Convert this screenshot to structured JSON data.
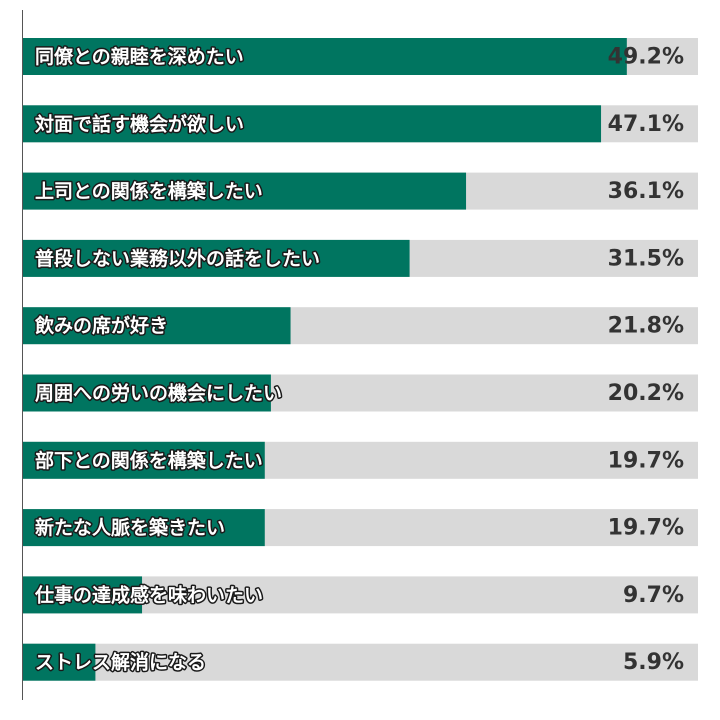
{
  "chart_data": {
    "type": "bar",
    "orientation": "horizontal",
    "categories": [
      "同僚との親睦を深めたい",
      "対面で話す機会が欲しい",
      "上司との関係を構築したい",
      "普段しない業務以外の話をしたい",
      "飲みの席が好き",
      "周囲への労いの機会にしたい",
      "部下との関係を構築したい",
      "新たな人脈を築きたい",
      "仕事の達成感を味わいたい",
      "ストレス解消になる"
    ],
    "values": [
      49.2,
      47.1,
      36.1,
      31.5,
      21.8,
      20.2,
      19.7,
      19.7,
      9.7,
      5.9
    ],
    "value_labels": [
      "49.2%",
      "47.1%",
      "36.1%",
      "31.5%",
      "21.8%",
      "20.2%",
      "19.7%",
      "19.7%",
      "9.7%",
      "5.9%"
    ],
    "color": "#007560",
    "track_color": "#d9d9d9",
    "xlim": [
      0,
      55
    ]
  }
}
